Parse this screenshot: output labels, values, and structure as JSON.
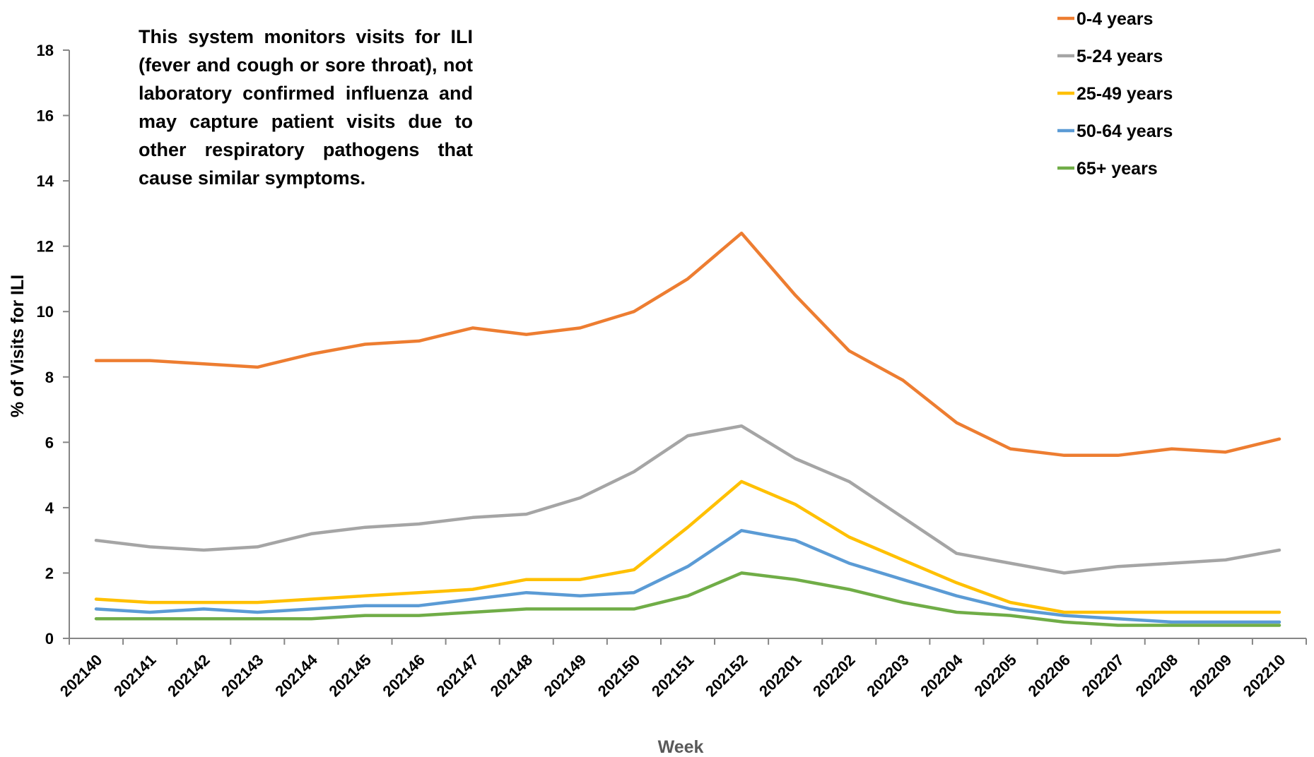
{
  "chart_data": {
    "type": "line",
    "title": "",
    "xlabel": "Week",
    "ylabel": "% of Visits for ILI",
    "ylim": [
      0,
      18
    ],
    "yticks": [
      0,
      2,
      4,
      6,
      8,
      10,
      12,
      14,
      16,
      18
    ],
    "grid": false,
    "legend_position": "top-right",
    "annotation": "This system monitors visits for ILI (fever and cough or sore throat), not laboratory confirmed influenza and may capture patient visits due to other respiratory pathogens that cause similar symptoms.",
    "categories": [
      "202140",
      "202141",
      "202142",
      "202143",
      "202144",
      "202145",
      "202146",
      "202147",
      "202148",
      "202149",
      "202150",
      "202151",
      "202152",
      "202201",
      "202202",
      "202203",
      "202204",
      "202205",
      "202206",
      "202207",
      "202208",
      "202209",
      "202210"
    ],
    "series": [
      {
        "name": "0-4 years",
        "color": "#ED7D31",
        "values": [
          8.5,
          8.5,
          8.4,
          8.3,
          8.7,
          9.0,
          9.1,
          9.5,
          9.3,
          9.5,
          10.0,
          11.0,
          12.4,
          10.5,
          8.8,
          7.9,
          6.6,
          5.8,
          5.6,
          5.6,
          5.8,
          5.7,
          6.1
        ]
      },
      {
        "name": "5-24 years",
        "color": "#A5A5A5",
        "values": [
          3.0,
          2.8,
          2.7,
          2.8,
          3.2,
          3.4,
          3.5,
          3.7,
          3.8,
          4.3,
          5.1,
          6.2,
          6.5,
          5.5,
          4.8,
          3.7,
          2.6,
          2.3,
          2.0,
          2.2,
          2.3,
          2.4,
          2.7
        ]
      },
      {
        "name": "25-49 years",
        "color": "#FFC000",
        "values": [
          1.2,
          1.1,
          1.1,
          1.1,
          1.2,
          1.3,
          1.4,
          1.5,
          1.8,
          1.8,
          2.1,
          3.4,
          4.8,
          4.1,
          3.1,
          2.4,
          1.7,
          1.1,
          0.8,
          0.8,
          0.8,
          0.8,
          0.8
        ]
      },
      {
        "name": "50-64 years",
        "color": "#5B9BD5",
        "values": [
          0.9,
          0.8,
          0.9,
          0.8,
          0.9,
          1.0,
          1.0,
          1.2,
          1.4,
          1.3,
          1.4,
          2.2,
          3.3,
          3.0,
          2.3,
          1.8,
          1.3,
          0.9,
          0.7,
          0.6,
          0.5,
          0.5,
          0.5
        ]
      },
      {
        "name": "65+ years",
        "color": "#70AD47",
        "values": [
          0.6,
          0.6,
          0.6,
          0.6,
          0.6,
          0.7,
          0.7,
          0.8,
          0.9,
          0.9,
          0.9,
          1.3,
          2.0,
          1.8,
          1.5,
          1.1,
          0.8,
          0.7,
          0.5,
          0.4,
          0.4,
          0.4,
          0.4
        ]
      }
    ]
  }
}
